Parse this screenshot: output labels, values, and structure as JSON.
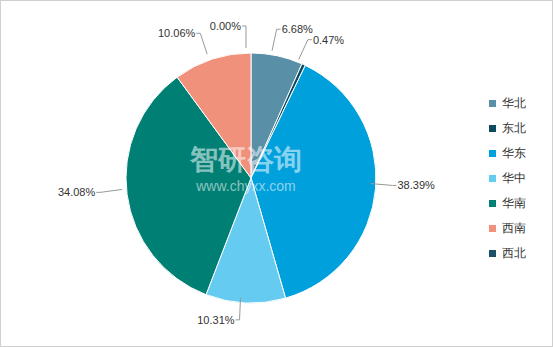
{
  "chart_data": {
    "type": "pie",
    "categories": [
      "华北",
      "东北",
      "华东",
      "华中",
      "华南",
      "西南",
      "西北"
    ],
    "values": [
      6.68,
      0.47,
      38.39,
      10.31,
      34.08,
      10.06,
      0.0
    ],
    "value_labels": [
      "6.68%",
      "0.47%",
      "38.39%",
      "10.31%",
      "34.08%",
      "10.06%",
      "0.00%"
    ],
    "colors": [
      "#5a8fa8",
      "#0d4b5f",
      "#00a0dc",
      "#66cbf0",
      "#008075",
      "#ef917b",
      "#1f4e6b"
    ],
    "data_labels": true,
    "legend": "right",
    "annotations": [
      "智研咨询",
      "www.chyxx.com"
    ]
  }
}
